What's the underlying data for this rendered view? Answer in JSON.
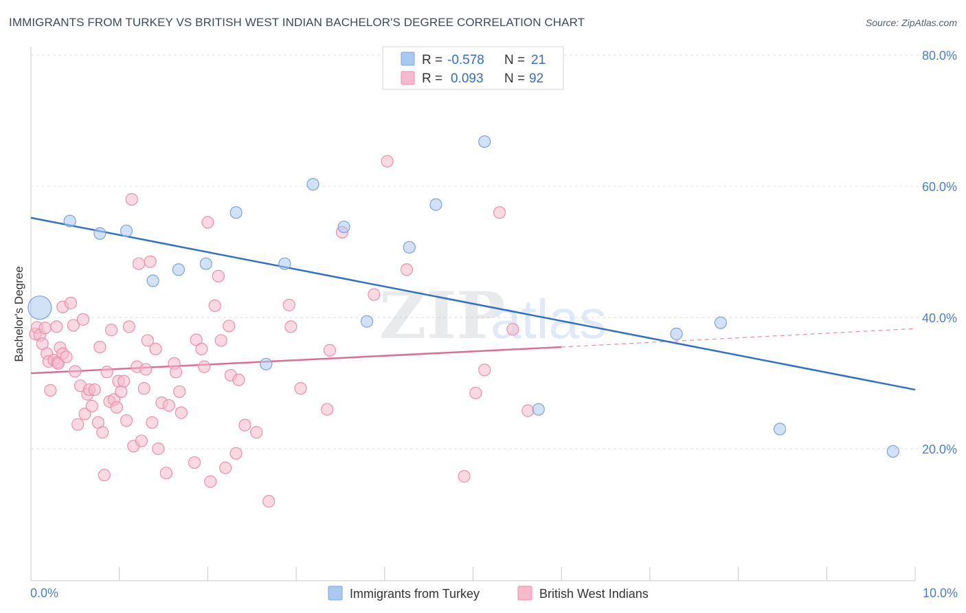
{
  "title": "IMMIGRANTS FROM TURKEY VS BRITISH WEST INDIAN BACHELOR'S DEGREE CORRELATION CHART",
  "source": "Source: ZipAtlas.com",
  "watermark": {
    "zip": "ZIP",
    "atlas": "atlas"
  },
  "legend_box": {
    "rows": [
      {
        "r_label": "R =",
        "r_value": "-0.578",
        "n_label": "N =",
        "n_value": "21",
        "color": "#a9c8f2",
        "stroke": "#7aa4dc"
      },
      {
        "r_label": "R =",
        "r_value": "0.093",
        "n_label": "N =",
        "n_value": "92",
        "color": "#f7b9cc",
        "stroke": "#ea8fac"
      }
    ]
  },
  "chart_data": {
    "type": "scatter",
    "xlabel": "",
    "ylabel": "Bachelor's Degree",
    "xlim": [
      0,
      10
    ],
    "ylim": [
      0,
      82
    ],
    "x_tick_labels": [
      {
        "value": 0,
        "label": "0.0%"
      },
      {
        "value": 10,
        "label": "10.0%"
      }
    ],
    "y_tick_labels": [
      {
        "value": 20,
        "label": "20.0%"
      },
      {
        "value": 40,
        "label": "40.0%"
      },
      {
        "value": 60,
        "label": "60.0%"
      },
      {
        "value": 80,
        "label": "80.0%"
      }
    ],
    "grid": true,
    "legend_position": "bottom-center",
    "series": [
      {
        "name": "Immigrants from Turkey",
        "color": "#a9c8f2",
        "stroke": "#7aa4dc",
        "line_color": "#2f6fce",
        "trend": {
          "x0": 0,
          "y0": 55.2,
          "x1": 10,
          "y1": 29.0
        },
        "points": [
          {
            "x": 0.1,
            "y": 41.5,
            "big": true
          },
          {
            "x": 0.44,
            "y": 54.7
          },
          {
            "x": 0.78,
            "y": 52.8
          },
          {
            "x": 1.08,
            "y": 53.2
          },
          {
            "x": 1.38,
            "y": 45.6
          },
          {
            "x": 1.67,
            "y": 47.3
          },
          {
            "x": 1.98,
            "y": 48.2
          },
          {
            "x": 2.32,
            "y": 56.0
          },
          {
            "x": 2.66,
            "y": 32.9
          },
          {
            "x": 2.87,
            "y": 48.2
          },
          {
            "x": 3.19,
            "y": 60.3
          },
          {
            "x": 3.54,
            "y": 53.8
          },
          {
            "x": 3.8,
            "y": 39.4
          },
          {
            "x": 4.28,
            "y": 50.7
          },
          {
            "x": 4.58,
            "y": 57.2
          },
          {
            "x": 5.13,
            "y": 66.8
          },
          {
            "x": 5.74,
            "y": 26.0
          },
          {
            "x": 7.3,
            "y": 37.5
          },
          {
            "x": 7.8,
            "y": 39.2
          },
          {
            "x": 8.47,
            "y": 23.0
          },
          {
            "x": 9.75,
            "y": 19.6
          }
        ]
      },
      {
        "name": "British West Indians",
        "color": "#f7b9cc",
        "stroke": "#ea8fac",
        "line_color": "#e06c95",
        "trend": {
          "x0": 0,
          "y0": 31.5,
          "x1": 6.0,
          "y1": 35.5
        },
        "trend_dashed": {
          "x0": 6.0,
          "y0": 35.5,
          "x1": 10,
          "y1": 38.3
        },
        "points": [
          {
            "x": 0.05,
            "y": 37.5
          },
          {
            "x": 0.07,
            "y": 38.5
          },
          {
            "x": 0.1,
            "y": 37.3
          },
          {
            "x": 0.13,
            "y": 36.0
          },
          {
            "x": 0.16,
            "y": 38.4
          },
          {
            "x": 0.18,
            "y": 34.5
          },
          {
            "x": 0.2,
            "y": 33.3
          },
          {
            "x": 0.22,
            "y": 28.9
          },
          {
            "x": 0.26,
            "y": 33.5
          },
          {
            "x": 0.29,
            "y": 38.6
          },
          {
            "x": 0.3,
            "y": 33.2
          },
          {
            "x": 0.31,
            "y": 33.0
          },
          {
            "x": 0.33,
            "y": 35.4
          },
          {
            "x": 0.36,
            "y": 34.5
          },
          {
            "x": 0.36,
            "y": 41.6
          },
          {
            "x": 0.4,
            "y": 34.0
          },
          {
            "x": 0.45,
            "y": 42.2
          },
          {
            "x": 0.48,
            "y": 38.8
          },
          {
            "x": 0.5,
            "y": 31.8
          },
          {
            "x": 0.53,
            "y": 23.7
          },
          {
            "x": 0.56,
            "y": 29.6
          },
          {
            "x": 0.59,
            "y": 39.7
          },
          {
            "x": 0.61,
            "y": 25.3
          },
          {
            "x": 0.64,
            "y": 28.3
          },
          {
            "x": 0.66,
            "y": 29.0
          },
          {
            "x": 0.69,
            "y": 26.5
          },
          {
            "x": 0.72,
            "y": 29.0
          },
          {
            "x": 0.76,
            "y": 24.0
          },
          {
            "x": 0.78,
            "y": 35.5
          },
          {
            "x": 0.81,
            "y": 22.5
          },
          {
            "x": 0.83,
            "y": 16.0
          },
          {
            "x": 0.86,
            "y": 31.7
          },
          {
            "x": 0.89,
            "y": 27.2
          },
          {
            "x": 0.91,
            "y": 38.1
          },
          {
            "x": 0.94,
            "y": 27.5
          },
          {
            "x": 0.97,
            "y": 26.3
          },
          {
            "x": 0.99,
            "y": 30.3
          },
          {
            "x": 1.02,
            "y": 28.7
          },
          {
            "x": 1.05,
            "y": 30.3
          },
          {
            "x": 1.08,
            "y": 24.3
          },
          {
            "x": 1.11,
            "y": 38.6
          },
          {
            "x": 1.14,
            "y": 58.0
          },
          {
            "x": 1.16,
            "y": 20.4
          },
          {
            "x": 1.2,
            "y": 32.5
          },
          {
            "x": 1.22,
            "y": 48.2
          },
          {
            "x": 1.25,
            "y": 21.2
          },
          {
            "x": 1.28,
            "y": 29.2
          },
          {
            "x": 1.3,
            "y": 32.1
          },
          {
            "x": 1.32,
            "y": 36.5
          },
          {
            "x": 1.35,
            "y": 48.5
          },
          {
            "x": 1.37,
            "y": 24.0
          },
          {
            "x": 1.41,
            "y": 35.2
          },
          {
            "x": 1.44,
            "y": 20.0
          },
          {
            "x": 1.48,
            "y": 27.0
          },
          {
            "x": 1.53,
            "y": 16.3
          },
          {
            "x": 1.56,
            "y": 26.6
          },
          {
            "x": 1.62,
            "y": 33.0
          },
          {
            "x": 1.64,
            "y": 31.7
          },
          {
            "x": 1.68,
            "y": 28.7
          },
          {
            "x": 1.7,
            "y": 25.5
          },
          {
            "x": 1.85,
            "y": 17.9
          },
          {
            "x": 1.87,
            "y": 36.6
          },
          {
            "x": 1.93,
            "y": 35.2
          },
          {
            "x": 1.96,
            "y": 32.5
          },
          {
            "x": 2.0,
            "y": 54.5
          },
          {
            "x": 2.03,
            "y": 15.0
          },
          {
            "x": 2.08,
            "y": 41.8
          },
          {
            "x": 2.12,
            "y": 46.3
          },
          {
            "x": 2.15,
            "y": 36.5
          },
          {
            "x": 2.2,
            "y": 17.1
          },
          {
            "x": 2.24,
            "y": 38.7
          },
          {
            "x": 2.26,
            "y": 31.2
          },
          {
            "x": 2.32,
            "y": 19.3
          },
          {
            "x": 2.35,
            "y": 30.5
          },
          {
            "x": 2.42,
            "y": 23.6
          },
          {
            "x": 2.55,
            "y": 22.5
          },
          {
            "x": 2.69,
            "y": 12.0
          },
          {
            "x": 2.92,
            "y": 41.9
          },
          {
            "x": 3.05,
            "y": 29.2
          },
          {
            "x": 3.35,
            "y": 26.0
          },
          {
            "x": 3.38,
            "y": 35.0
          },
          {
            "x": 3.52,
            "y": 53.0
          },
          {
            "x": 3.88,
            "y": 43.5
          },
          {
            "x": 4.03,
            "y": 63.8
          },
          {
            "x": 4.25,
            "y": 47.3
          },
          {
            "x": 4.9,
            "y": 15.8
          },
          {
            "x": 5.03,
            "y": 28.5
          },
          {
            "x": 5.13,
            "y": 32.0
          },
          {
            "x": 5.45,
            "y": 38.2
          },
          {
            "x": 5.62,
            "y": 25.8
          },
          {
            "x": 5.3,
            "y": 56.0
          },
          {
            "x": 2.94,
            "y": 38.6
          }
        ]
      }
    ]
  }
}
